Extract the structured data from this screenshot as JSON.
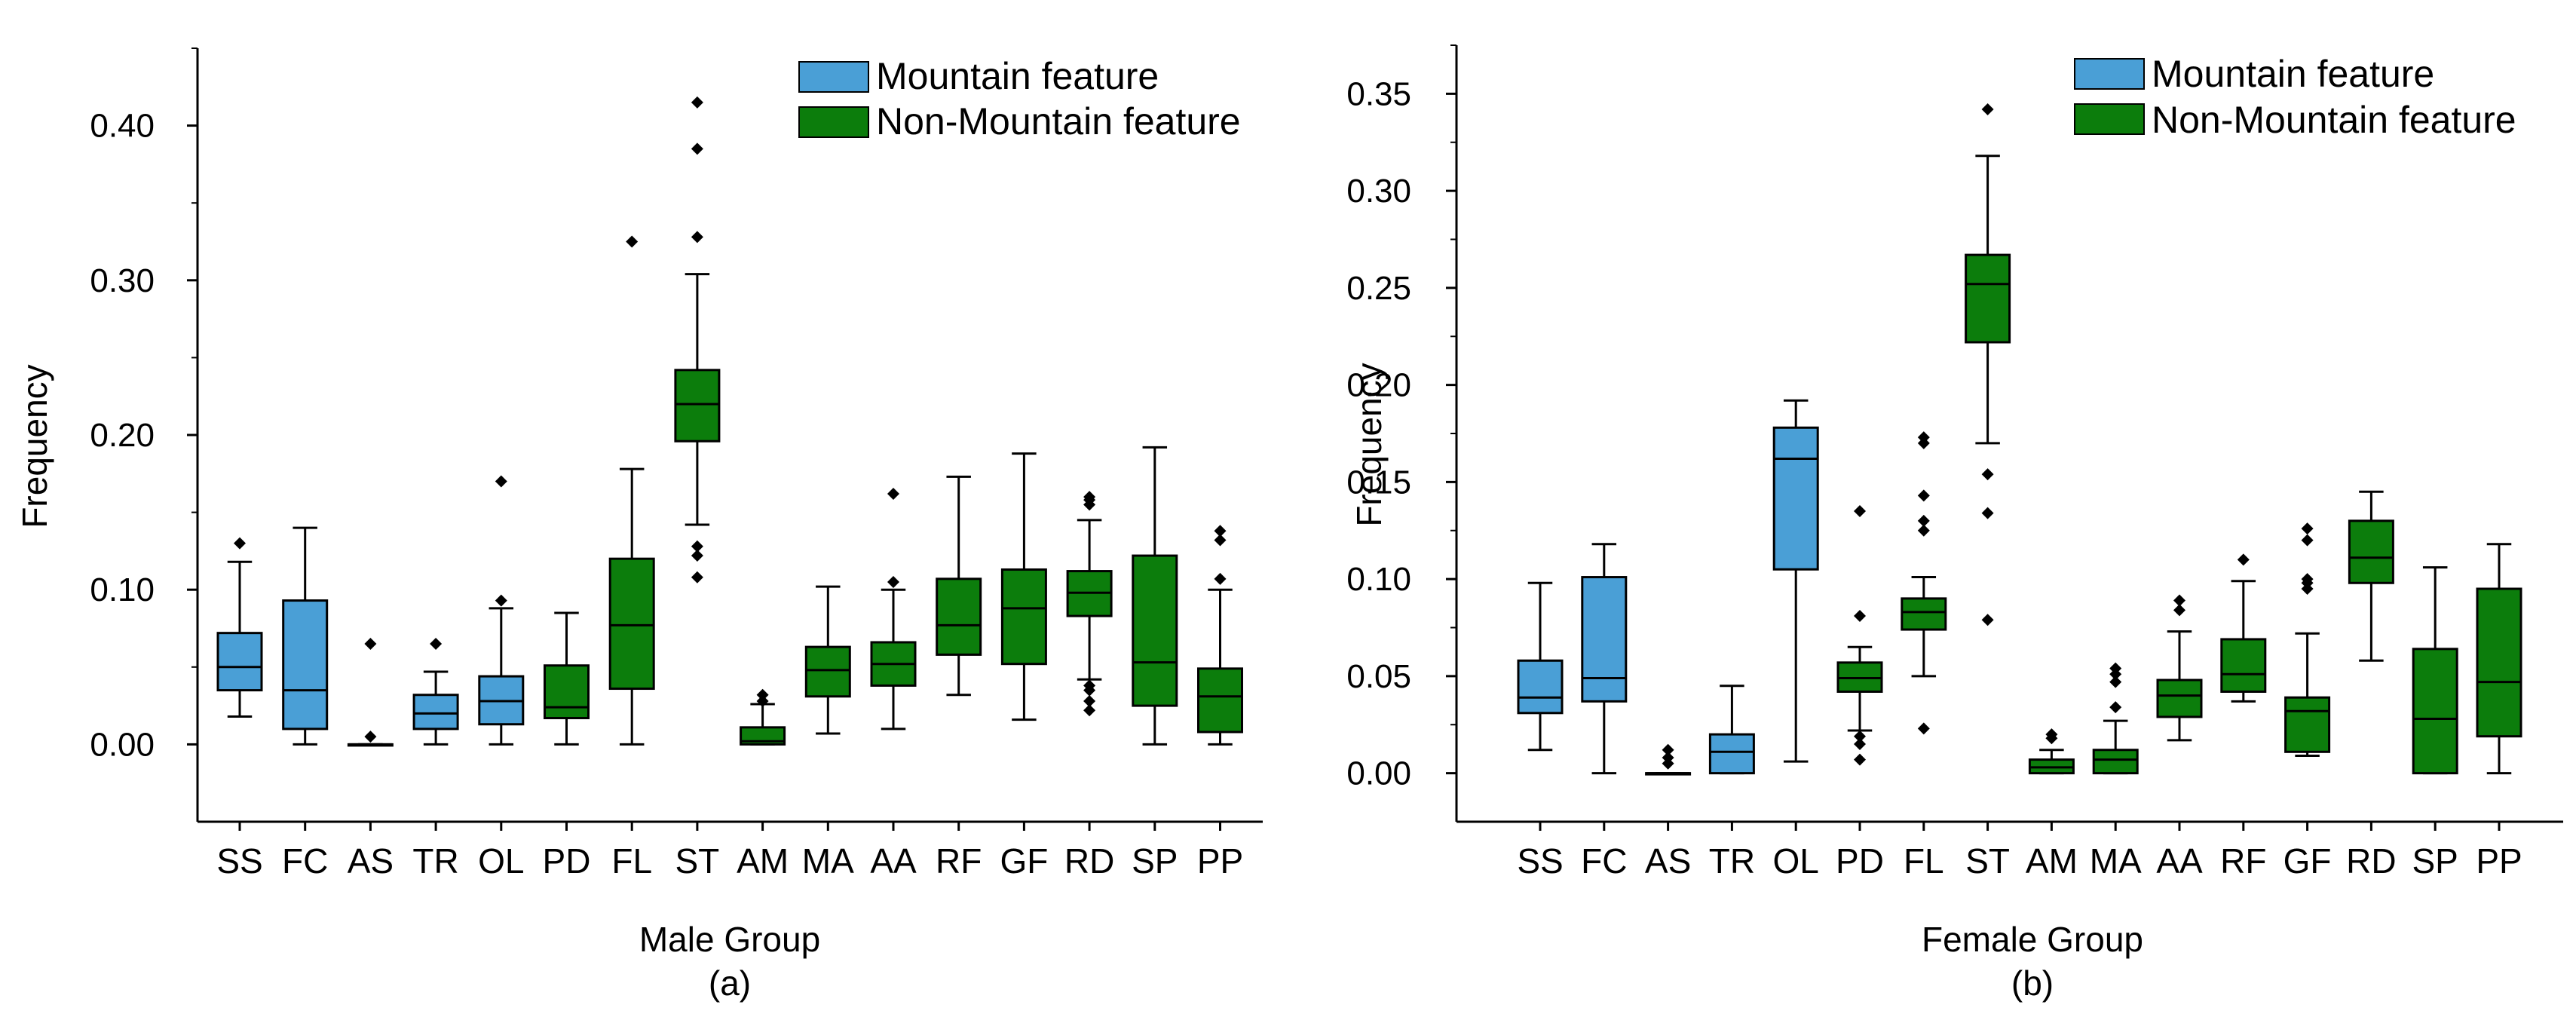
{
  "chart_data": [
    {
      "type": "box",
      "panel_label": "(a)",
      "xlabel": "Male Group",
      "ylabel": "Frequency",
      "ylim": [
        -0.05,
        0.45
      ],
      "yticks": [
        0.0,
        0.1,
        0.2,
        0.3,
        0.4
      ],
      "ytick_labels": [
        "0.00",
        "0.10",
        "0.20",
        "0.30",
        "0.40"
      ],
      "legend": [
        {
          "label": "Mountain feature",
          "color": "#4a9fd6"
        },
        {
          "label": "Non-Mountain feature",
          "color": "#0c7d0c"
        }
      ],
      "boxes": [
        {
          "category": "SS",
          "group": "mountain",
          "min": 0.018,
          "q1": 0.035,
          "median": 0.05,
          "q3": 0.072,
          "max": 0.118,
          "outliers": [
            0.13
          ]
        },
        {
          "category": "FC",
          "group": "mountain",
          "min": 0.0,
          "q1": 0.01,
          "median": 0.035,
          "q3": 0.093,
          "max": 0.14,
          "outliers": []
        },
        {
          "category": "AS",
          "group": "mountain",
          "min": 0.0,
          "q1": 0.0,
          "median": 0.0,
          "q3": 0.0,
          "max": 0.0,
          "outliers": [
            0.005,
            0.065
          ]
        },
        {
          "category": "TR",
          "group": "mountain",
          "min": 0.0,
          "q1": 0.01,
          "median": 0.02,
          "q3": 0.032,
          "max": 0.047,
          "outliers": [
            0.065
          ]
        },
        {
          "category": "OL",
          "group": "mountain",
          "min": 0.0,
          "q1": 0.013,
          "median": 0.028,
          "q3": 0.044,
          "max": 0.088,
          "outliers": [
            0.093,
            0.17
          ]
        },
        {
          "category": "PD",
          "group": "non-mountain",
          "min": 0.0,
          "q1": 0.017,
          "median": 0.024,
          "q3": 0.051,
          "max": 0.085,
          "outliers": []
        },
        {
          "category": "FL",
          "group": "non-mountain",
          "min": 0.0,
          "q1": 0.036,
          "median": 0.077,
          "q3": 0.12,
          "max": 0.178,
          "outliers": [
            0.325
          ]
        },
        {
          "category": "ST",
          "group": "non-mountain",
          "min": 0.142,
          "q1": 0.196,
          "median": 0.22,
          "q3": 0.242,
          "max": 0.304,
          "outliers": [
            0.108,
            0.122,
            0.128,
            0.328,
            0.385,
            0.415
          ]
        },
        {
          "category": "AM",
          "group": "non-mountain",
          "min": 0.0,
          "q1": 0.0,
          "median": 0.002,
          "q3": 0.011,
          "max": 0.026,
          "outliers": [
            0.028,
            0.032
          ]
        },
        {
          "category": "MA",
          "group": "non-mountain",
          "min": 0.007,
          "q1": 0.031,
          "median": 0.048,
          "q3": 0.063,
          "max": 0.102,
          "outliers": []
        },
        {
          "category": "AA",
          "group": "non-mountain",
          "min": 0.01,
          "q1": 0.038,
          "median": 0.052,
          "q3": 0.066,
          "max": 0.1,
          "outliers": [
            0.105,
            0.162
          ]
        },
        {
          "category": "RF",
          "group": "non-mountain",
          "min": 0.032,
          "q1": 0.058,
          "median": 0.077,
          "q3": 0.107,
          "max": 0.173,
          "outliers": []
        },
        {
          "category": "GF",
          "group": "non-mountain",
          "min": 0.016,
          "q1": 0.052,
          "median": 0.088,
          "q3": 0.113,
          "max": 0.188,
          "outliers": []
        },
        {
          "category": "RD",
          "group": "non-mountain",
          "min": 0.042,
          "q1": 0.083,
          "median": 0.098,
          "q3": 0.112,
          "max": 0.145,
          "outliers": [
            0.022,
            0.028,
            0.035,
            0.038,
            0.155,
            0.158,
            0.16
          ]
        },
        {
          "category": "SP",
          "group": "non-mountain",
          "min": 0.0,
          "q1": 0.025,
          "median": 0.053,
          "q3": 0.122,
          "max": 0.192,
          "outliers": []
        },
        {
          "category": "PP",
          "group": "non-mountain",
          "min": 0.0,
          "q1": 0.008,
          "median": 0.031,
          "q3": 0.049,
          "max": 0.1,
          "outliers": [
            0.107,
            0.132,
            0.138
          ]
        }
      ]
    },
    {
      "type": "box",
      "panel_label": "(b)",
      "xlabel": "Female Group",
      "ylabel": "Frequency",
      "ylim": [
        -0.025,
        0.375
      ],
      "yticks": [
        0.0,
        0.05,
        0.1,
        0.15,
        0.2,
        0.25,
        0.3,
        0.35
      ],
      "ytick_labels": [
        "0.00",
        "0.05",
        "0.10",
        "0.15",
        "0.20",
        "0.25",
        "0.30",
        "0.35"
      ],
      "legend": [
        {
          "label": "Mountain feature",
          "color": "#4a9fd6"
        },
        {
          "label": "Non-Mountain feature",
          "color": "#0c7d0c"
        }
      ],
      "boxes": [
        {
          "category": "SS",
          "group": "mountain",
          "min": 0.012,
          "q1": 0.031,
          "median": 0.039,
          "q3": 0.058,
          "max": 0.098,
          "outliers": []
        },
        {
          "category": "FC",
          "group": "mountain",
          "min": 0.0,
          "q1": 0.037,
          "median": 0.049,
          "q3": 0.101,
          "max": 0.118,
          "outliers": []
        },
        {
          "category": "AS",
          "group": "mountain",
          "min": 0.0,
          "q1": 0.0,
          "median": 0.0,
          "q3": 0.0,
          "max": 0.0,
          "outliers": [
            0.005,
            0.008,
            0.012
          ]
        },
        {
          "category": "TR",
          "group": "mountain",
          "min": 0.0,
          "q1": 0.0,
          "median": 0.011,
          "q3": 0.02,
          "max": 0.045,
          "outliers": []
        },
        {
          "category": "OL",
          "group": "mountain",
          "min": 0.006,
          "q1": 0.105,
          "median": 0.162,
          "q3": 0.178,
          "max": 0.192,
          "outliers": []
        },
        {
          "category": "PD",
          "group": "non-mountain",
          "min": 0.022,
          "q1": 0.042,
          "median": 0.049,
          "q3": 0.057,
          "max": 0.065,
          "outliers": [
            0.007,
            0.015,
            0.019,
            0.081,
            0.135
          ]
        },
        {
          "category": "FL",
          "group": "non-mountain",
          "min": 0.05,
          "q1": 0.074,
          "median": 0.083,
          "q3": 0.09,
          "max": 0.101,
          "outliers": [
            0.023,
            0.125,
            0.13,
            0.143,
            0.17,
            0.173
          ]
        },
        {
          "category": "ST",
          "group": "non-mountain",
          "min": 0.17,
          "q1": 0.222,
          "median": 0.252,
          "q3": 0.267,
          "max": 0.318,
          "outliers": [
            0.079,
            0.134,
            0.154,
            0.342
          ]
        },
        {
          "category": "AM",
          "group": "non-mountain",
          "min": 0.0,
          "q1": 0.0,
          "median": 0.003,
          "q3": 0.007,
          "max": 0.012,
          "outliers": [
            0.018,
            0.02
          ]
        },
        {
          "category": "MA",
          "group": "non-mountain",
          "min": 0.0,
          "q1": 0.0,
          "median": 0.007,
          "q3": 0.012,
          "max": 0.027,
          "outliers": [
            0.034,
            0.047,
            0.051,
            0.054
          ]
        },
        {
          "category": "AA",
          "group": "non-mountain",
          "min": 0.017,
          "q1": 0.029,
          "median": 0.04,
          "q3": 0.048,
          "max": 0.073,
          "outliers": [
            0.084,
            0.089
          ]
        },
        {
          "category": "RF",
          "group": "non-mountain",
          "min": 0.037,
          "q1": 0.042,
          "median": 0.051,
          "q3": 0.069,
          "max": 0.099,
          "outliers": [
            0.11
          ]
        },
        {
          "category": "GF",
          "group": "non-mountain",
          "min": 0.009,
          "q1": 0.011,
          "median": 0.032,
          "q3": 0.039,
          "max": 0.072,
          "outliers": [
            0.095,
            0.098,
            0.1,
            0.12,
            0.126
          ]
        },
        {
          "category": "RD",
          "group": "non-mountain",
          "min": 0.058,
          "q1": 0.098,
          "median": 0.111,
          "q3": 0.13,
          "max": 0.145,
          "outliers": []
        },
        {
          "category": "SP",
          "group": "non-mountain",
          "min": 0.0,
          "q1": 0.0,
          "median": 0.028,
          "q3": 0.064,
          "max": 0.106,
          "outliers": []
        },
        {
          "category": "PP",
          "group": "non-mountain",
          "min": 0.0,
          "q1": 0.019,
          "median": 0.047,
          "q3": 0.095,
          "max": 0.118,
          "outliers": []
        }
      ]
    }
  ]
}
